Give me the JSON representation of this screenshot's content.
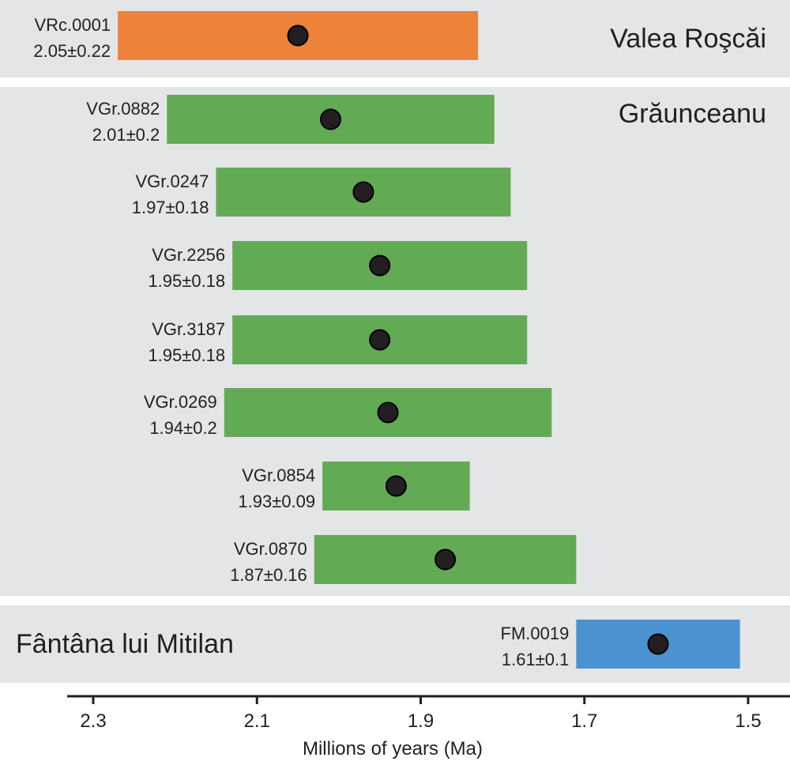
{
  "chart_data": {
    "type": "range-dot",
    "xlabel": "Millions of years (Ma)",
    "x_axis": {
      "reversed": true,
      "xlim": [
        2.3,
        1.5
      ],
      "ticks": [
        2.3,
        2.1,
        1.9,
        1.7,
        1.5
      ],
      "tick_labels": [
        "2.3",
        "2.1",
        "1.9",
        "1.7",
        "1.5"
      ]
    },
    "colors": {
      "panel_bg": "#e4e5e7",
      "Valea Roşcăi": "#ed823a",
      "Grăunceanu": "#63aa54",
      "Fântâna lui Mitilan": "#4b93d0",
      "dot": "#231f20"
    },
    "groups": [
      {
        "site": "Valea Roşcăi",
        "samples": [
          {
            "id": "VRc.0001",
            "label": "2.05±0.22",
            "age": 2.05,
            "error": 0.22
          }
        ]
      },
      {
        "site": "Grăunceanu",
        "samples": [
          {
            "id": "VGr.0882",
            "label": "2.01±0.2",
            "age": 2.01,
            "error": 0.2
          },
          {
            "id": "VGr.0247",
            "label": "1.97±0.18",
            "age": 1.97,
            "error": 0.18
          },
          {
            "id": "VGr.2256",
            "label": "1.95±0.18",
            "age": 1.95,
            "error": 0.18
          },
          {
            "id": "VGr.3187",
            "label": "1.95±0.18",
            "age": 1.95,
            "error": 0.18
          },
          {
            "id": "VGr.0269",
            "label": "1.94±0.2",
            "age": 1.94,
            "error": 0.2
          },
          {
            "id": "VGr.0854",
            "label": "1.93±0.09",
            "age": 1.93,
            "error": 0.09
          },
          {
            "id": "VGr.0870",
            "label": "1.87±0.16",
            "age": 1.87,
            "error": 0.16
          }
        ]
      },
      {
        "site": "Fântâna lui Mitilan",
        "samples": [
          {
            "id": "FM.0019",
            "label": "1.61±0.1",
            "age": 1.61,
            "error": 0.1
          }
        ]
      }
    ]
  }
}
